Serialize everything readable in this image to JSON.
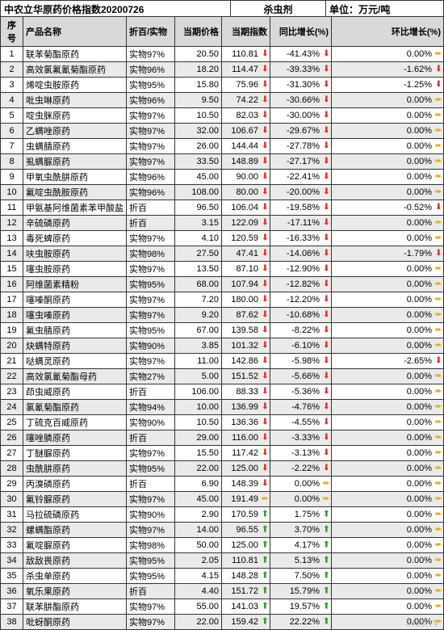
{
  "header": {
    "title": "中农立华原药价格指数20200726",
    "category": "杀虫剂",
    "unit": "单位：万元/吨"
  },
  "columns": {
    "num": "序号",
    "name": "产品名称",
    "type": "折百/实物",
    "price": "当期价格",
    "index": "当期指数",
    "yoy": "同比增长(%)",
    "mom": "环比增长(%)"
  },
  "arrows": {
    "down": {
      "glyph": "⬇",
      "color": "#e03030"
    },
    "up": {
      "glyph": "⬆",
      "color": "#2a9d2a"
    },
    "flat": {
      "glyph": "➨",
      "color": "#e8b020"
    }
  },
  "rows": [
    {
      "num": 1,
      "name": "联苯菊酯原药",
      "type": "实物97%",
      "price": "20.50",
      "index": "110.81",
      "index_dir": "down",
      "yoy": "-41.43%",
      "yoy_dir": "down",
      "mom": "0.00%",
      "mom_dir": "flat"
    },
    {
      "num": 2,
      "name": "高效氯氟氰菊酯原药",
      "type": "实物96%",
      "price": "18.20",
      "index": "114.47",
      "index_dir": "down",
      "yoy": "-39.33%",
      "yoy_dir": "down",
      "mom": "-1.62%",
      "mom_dir": "down"
    },
    {
      "num": 3,
      "name": "烯啶虫胺原药",
      "type": "实物95%",
      "price": "15.80",
      "index": "75.96",
      "index_dir": "down",
      "yoy": "-31.30%",
      "yoy_dir": "down",
      "mom": "-1.25%",
      "mom_dir": "down"
    },
    {
      "num": 4,
      "name": "吡虫啉原药",
      "type": "实物96%",
      "price": "9.50",
      "index": "74.22",
      "index_dir": "down",
      "yoy": "-30.66%",
      "yoy_dir": "down",
      "mom": "0.00%",
      "mom_dir": "flat"
    },
    {
      "num": 5,
      "name": "啶虫脒原药",
      "type": "实物97%",
      "price": "10.50",
      "index": "82.03",
      "index_dir": "down",
      "yoy": "-30.00%",
      "yoy_dir": "down",
      "mom": "0.00%",
      "mom_dir": "flat"
    },
    {
      "num": 6,
      "name": "乙螨唑原药",
      "type": "实物97%",
      "price": "32.00",
      "index": "106.67",
      "index_dir": "down",
      "yoy": "-29.67%",
      "yoy_dir": "down",
      "mom": "0.00%",
      "mom_dir": "flat"
    },
    {
      "num": 7,
      "name": "虫螨腈原药",
      "type": "实物97%",
      "price": "26.00",
      "index": "144.44",
      "index_dir": "down",
      "yoy": "-27.78%",
      "yoy_dir": "down",
      "mom": "0.00%",
      "mom_dir": "flat"
    },
    {
      "num": 8,
      "name": "虱螨脲原药",
      "type": "实物97%",
      "price": "33.50",
      "index": "148.89",
      "index_dir": "down",
      "yoy": "-27.17%",
      "yoy_dir": "down",
      "mom": "0.00%",
      "mom_dir": "flat"
    },
    {
      "num": 9,
      "name": "甲氧虫酰肼原药",
      "type": "实物96%",
      "price": "45.00",
      "index": "90.00",
      "index_dir": "down",
      "yoy": "-22.41%",
      "yoy_dir": "down",
      "mom": "0.00%",
      "mom_dir": "flat"
    },
    {
      "num": 10,
      "name": "氟啶虫酰胺原药",
      "type": "实物96%",
      "price": "108.00",
      "index": "80.00",
      "index_dir": "down",
      "yoy": "-20.00%",
      "yoy_dir": "down",
      "mom": "0.00%",
      "mom_dir": "flat"
    },
    {
      "num": 11,
      "name": "甲氨基阿维菌素苯甲酸盐",
      "type": "折百",
      "price": "96.50",
      "index": "106.04",
      "index_dir": "down",
      "yoy": "-19.58%",
      "yoy_dir": "down",
      "mom": "-0.52%",
      "mom_dir": "down"
    },
    {
      "num": 12,
      "name": "辛硫磷原药",
      "type": "折百",
      "price": "3.15",
      "index": "122.09",
      "index_dir": "down",
      "yoy": "-17.11%",
      "yoy_dir": "down",
      "mom": "0.00%",
      "mom_dir": "flat"
    },
    {
      "num": 13,
      "name": "毒死蜱原药",
      "type": "实物97%",
      "price": "4.10",
      "index": "120.59",
      "index_dir": "down",
      "yoy": "-16.33%",
      "yoy_dir": "down",
      "mom": "0.00%",
      "mom_dir": "flat"
    },
    {
      "num": 14,
      "name": "呋虫胺原药",
      "type": "实物98%",
      "price": "27.50",
      "index": "47.41",
      "index_dir": "down",
      "yoy": "-14.06%",
      "yoy_dir": "down",
      "mom": "-1.79%",
      "mom_dir": "down"
    },
    {
      "num": 15,
      "name": "噻虫胺原药",
      "type": "实物97%",
      "price": "13.50",
      "index": "87.10",
      "index_dir": "down",
      "yoy": "-12.90%",
      "yoy_dir": "down",
      "mom": "0.00%",
      "mom_dir": "flat"
    },
    {
      "num": 16,
      "name": "阿维菌素精粉",
      "type": "实物95%",
      "price": "68.00",
      "index": "107.94",
      "index_dir": "down",
      "yoy": "-12.82%",
      "yoy_dir": "down",
      "mom": "0.00%",
      "mom_dir": "flat"
    },
    {
      "num": 17,
      "name": "噻嗪酮原药",
      "type": "实物97%",
      "price": "7.20",
      "index": "180.00",
      "index_dir": "down",
      "yoy": "-12.20%",
      "yoy_dir": "down",
      "mom": "0.00%",
      "mom_dir": "flat"
    },
    {
      "num": 18,
      "name": "噻虫嗪原药",
      "type": "实物97%",
      "price": "9.20",
      "index": "87.62",
      "index_dir": "down",
      "yoy": "-10.68%",
      "yoy_dir": "down",
      "mom": "0.00%",
      "mom_dir": "flat"
    },
    {
      "num": 19,
      "name": "氟虫腈原药",
      "type": "实物95%",
      "price": "67.00",
      "index": "139.58",
      "index_dir": "down",
      "yoy": "-8.22%",
      "yoy_dir": "down",
      "mom": "0.00%",
      "mom_dir": "flat"
    },
    {
      "num": 20,
      "name": "炔螨特原药",
      "type": "实物90%",
      "price": "3.85",
      "index": "101.32",
      "index_dir": "down",
      "yoy": "-6.10%",
      "yoy_dir": "down",
      "mom": "0.00%",
      "mom_dir": "flat"
    },
    {
      "num": 21,
      "name": "哒螨灵原药",
      "type": "实物97%",
      "price": "11.00",
      "index": "142.86",
      "index_dir": "down",
      "yoy": "-5.98%",
      "yoy_dir": "down",
      "mom": "-2.65%",
      "mom_dir": "down"
    },
    {
      "num": 22,
      "name": "高效氯氰菊酯母药",
      "type": "实物27%",
      "price": "5.00",
      "index": "151.52",
      "index_dir": "down",
      "yoy": "-5.66%",
      "yoy_dir": "down",
      "mom": "0.00%",
      "mom_dir": "flat"
    },
    {
      "num": 23,
      "name": "茚虫威原药",
      "type": "折百",
      "price": "106.00",
      "index": "88.33",
      "index_dir": "down",
      "yoy": "-5.36%",
      "yoy_dir": "down",
      "mom": "0.00%",
      "mom_dir": "flat"
    },
    {
      "num": 24,
      "name": "氯氰菊酯原药",
      "type": "实物94%",
      "price": "10.00",
      "index": "136.99",
      "index_dir": "down",
      "yoy": "-4.76%",
      "yoy_dir": "down",
      "mom": "0.00%",
      "mom_dir": "flat"
    },
    {
      "num": 25,
      "name": "丁硫克百威原药",
      "type": "实物90%",
      "price": "10.50",
      "index": "136.36",
      "index_dir": "down",
      "yoy": "-4.55%",
      "yoy_dir": "down",
      "mom": "0.00%",
      "mom_dir": "flat"
    },
    {
      "num": 26,
      "name": "噻唑膦原药",
      "type": "折百",
      "price": "29.00",
      "index": "116.00",
      "index_dir": "down",
      "yoy": "-3.33%",
      "yoy_dir": "down",
      "mom": "0.00%",
      "mom_dir": "flat"
    },
    {
      "num": 27,
      "name": "丁醚脲原药",
      "type": "实物97%",
      "price": "15.50",
      "index": "117.42",
      "index_dir": "down",
      "yoy": "-3.13%",
      "yoy_dir": "down",
      "mom": "0.00%",
      "mom_dir": "flat"
    },
    {
      "num": 28,
      "name": "虫酰肼原药",
      "type": "实物95%",
      "price": "22.00",
      "index": "125.00",
      "index_dir": "down",
      "yoy": "-2.22%",
      "yoy_dir": "down",
      "mom": "0.00%",
      "mom_dir": "flat"
    },
    {
      "num": 29,
      "name": "丙溴磷原药",
      "type": "折百",
      "price": "6.90",
      "index": "148.39",
      "index_dir": "down",
      "yoy": "0.00%",
      "yoy_dir": "flat",
      "mom": "0.00%",
      "mom_dir": "flat"
    },
    {
      "num": 30,
      "name": "氟铃脲原药",
      "type": "实物97%",
      "price": "45.00",
      "index": "191.49",
      "index_dir": "flat",
      "yoy": "0.00%",
      "yoy_dir": "flat",
      "mom": "0.00%",
      "mom_dir": "flat"
    },
    {
      "num": 31,
      "name": "马拉硫磷原药",
      "type": "实物90%",
      "price": "2.90",
      "index": "170.59",
      "index_dir": "up",
      "yoy": "1.75%",
      "yoy_dir": "up",
      "mom": "0.00%",
      "mom_dir": "flat"
    },
    {
      "num": 32,
      "name": "螺螨酯原药",
      "type": "实物97%",
      "price": "14.00",
      "index": "96.55",
      "index_dir": "up",
      "yoy": "3.70%",
      "yoy_dir": "up",
      "mom": "0.00%",
      "mom_dir": "flat"
    },
    {
      "num": 33,
      "name": "氟啶脲原药",
      "type": "实物98%",
      "price": "50.00",
      "index": "125.00",
      "index_dir": "up",
      "yoy": "4.17%",
      "yoy_dir": "up",
      "mom": "0.00%",
      "mom_dir": "flat"
    },
    {
      "num": 34,
      "name": "敌敌畏原药",
      "type": "实物95%",
      "price": "2.05",
      "index": "110.81",
      "index_dir": "up",
      "yoy": "5.13%",
      "yoy_dir": "up",
      "mom": "0.00%",
      "mom_dir": "flat"
    },
    {
      "num": 35,
      "name": "杀虫单原药",
      "type": "实物95%",
      "price": "4.15",
      "index": "148.28",
      "index_dir": "up",
      "yoy": "7.50%",
      "yoy_dir": "up",
      "mom": "0.00%",
      "mom_dir": "flat"
    },
    {
      "num": 36,
      "name": "氧乐果原药",
      "type": "折百",
      "price": "4.40",
      "index": "151.72",
      "index_dir": "up",
      "yoy": "15.79%",
      "yoy_dir": "up",
      "mom": "0.00%",
      "mom_dir": "flat"
    },
    {
      "num": 37,
      "name": "联苯肼酯原药",
      "type": "实物97%",
      "price": "55.00",
      "index": "141.03",
      "index_dir": "up",
      "yoy": "19.57%",
      "yoy_dir": "up",
      "mom": "0.00%",
      "mom_dir": "flat"
    },
    {
      "num": 38,
      "name": "吡蚜酮原药",
      "type": "实物97%",
      "price": "22.00",
      "index": "159.42",
      "index_dir": "up",
      "yoy": "22.22%",
      "yoy_dir": "up",
      "mom": "0.00%",
      "mom_dir": "flat"
    }
  ],
  "watermark": "3456.TV"
}
